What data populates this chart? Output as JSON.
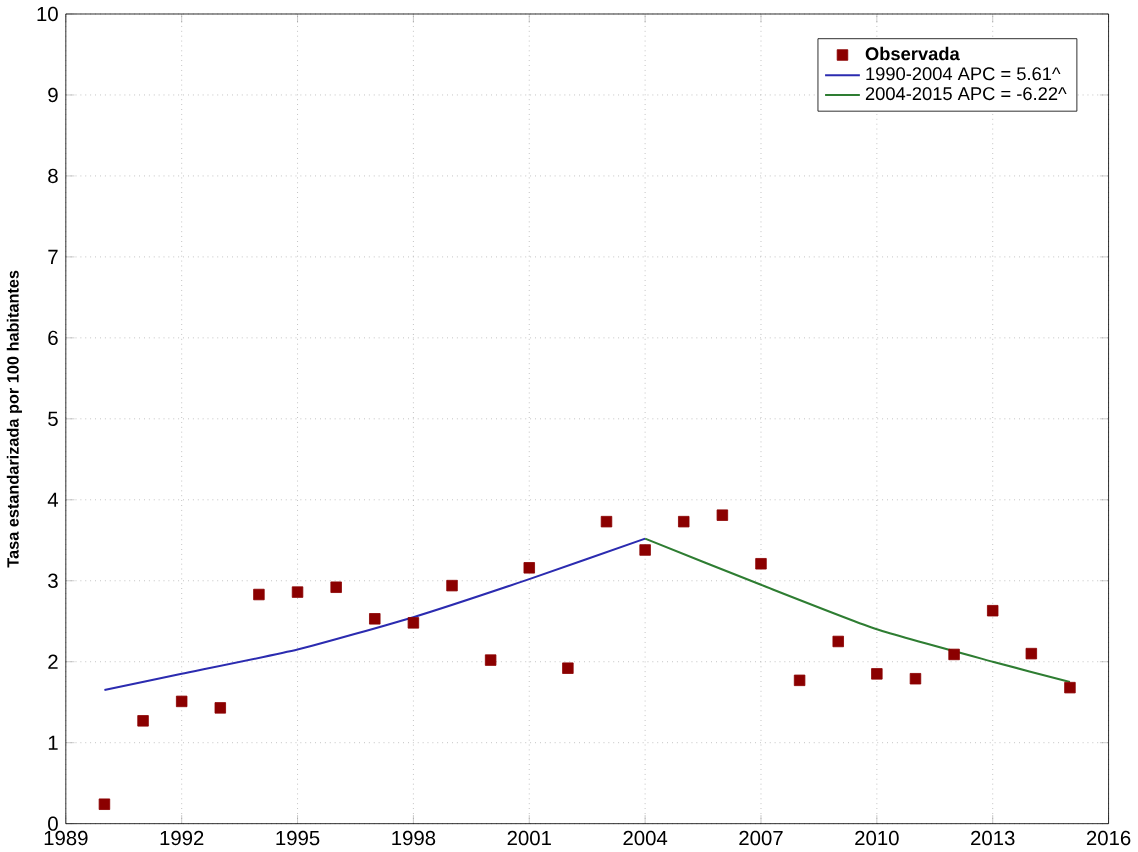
{
  "chart_data": {
    "type": "scatter",
    "ylabel": "Tasa estandarizada por 100 habitantes",
    "xlim": [
      1989,
      2016
    ],
    "xticks": [
      1989,
      1992,
      1995,
      1998,
      2001,
      2004,
      2007,
      2010,
      2013,
      2016
    ],
    "ylim": [
      0,
      10
    ],
    "yticks": [
      0,
      1,
      2,
      3,
      4,
      5,
      6,
      7,
      8,
      9,
      10
    ],
    "grid": true,
    "legend": "top right",
    "series": [
      {
        "name": "**Observada**",
        "marker": "square",
        "color": "#8b0000",
        "x": [
          1990,
          1991,
          1992,
          1993,
          1994,
          1995,
          1996,
          1997,
          1998,
          1999,
          2000,
          2001,
          2002,
          2003,
          2004,
          2005,
          2006,
          2007,
          2008,
          2009,
          2010,
          2011,
          2012,
          2013,
          2014,
          2015
        ],
        "values": [
          0.24,
          1.27,
          1.51,
          1.43,
          2.83,
          2.86,
          2.92,
          2.53,
          2.48,
          2.94,
          2.02,
          3.16,
          1.92,
          3.73,
          3.38,
          3.73,
          3.81,
          3.21,
          1.77,
          2.25,
          1.85,
          1.79,
          2.09,
          2.63,
          2.1,
          1.68
        ]
      },
      {
        "name": "1990-2004 APC  =  5.61^",
        "type": "line",
        "color": "#2b2bb0",
        "x": [
          1990,
          1992,
          1995,
          1998,
          2001,
          2004
        ],
        "values": [
          1.65,
          1.85,
          2.15,
          2.55,
          3.02,
          3.52
        ]
      },
      {
        "name": "2004-2015 APC  = -6.22^",
        "type": "line",
        "color": "#2e7d32",
        "x": [
          2004,
          2007,
          2010,
          2013,
          2015
        ],
        "values": [
          3.52,
          2.95,
          2.4,
          2.0,
          1.75
        ]
      }
    ]
  }
}
